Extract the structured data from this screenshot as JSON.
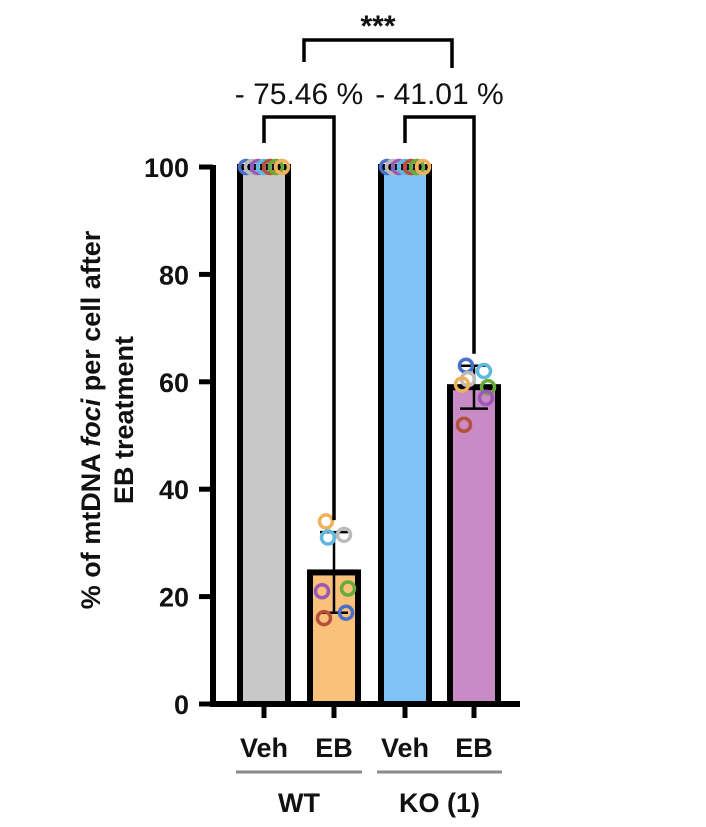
{
  "chart_data": {
    "type": "bar",
    "ylabel_line1_pre": "% of mtDNA ",
    "ylabel_line1_italic": "foci",
    "ylabel_line1_post": " per cell after",
    "ylabel_line2": "EB treatment",
    "ylim": [
      0,
      100
    ],
    "yticks": [
      "0",
      "20",
      "40",
      "60",
      "80",
      "100"
    ],
    "ytick_values": [
      0,
      20,
      40,
      60,
      80,
      100
    ],
    "categories": [
      "Veh",
      "EB",
      "Veh",
      "EB"
    ],
    "groups": [
      {
        "label": "WT",
        "members": [
          0,
          1
        ]
      },
      {
        "label": "KO (1)",
        "members": [
          2,
          3
        ]
      }
    ],
    "bars": [
      {
        "category": "Veh",
        "group": "WT",
        "value": 100,
        "color": "#c8c8c8",
        "error": 0,
        "points": [
          {
            "y": 100,
            "color": "#4a6fc7"
          },
          {
            "y": 100,
            "color": "#bbbbbb"
          },
          {
            "y": 100,
            "color": "#9b59b6"
          },
          {
            "y": 100,
            "color": "#5fb8e0"
          },
          {
            "y": 100,
            "color": "#b5503a"
          },
          {
            "y": 100,
            "color": "#6aaa3a"
          },
          {
            "y": 100,
            "color": "#f0b15a"
          }
        ]
      },
      {
        "category": "EB",
        "group": "WT",
        "value": 24.5,
        "color": "#f9c17a",
        "error": 7.5,
        "points": [
          {
            "y": 34,
            "color": "#f0b15a"
          },
          {
            "y": 31.5,
            "color": "#bbbbbb"
          },
          {
            "y": 31,
            "color": "#5fb8e0"
          },
          {
            "y": 21.5,
            "color": "#6aaa3a"
          },
          {
            "y": 21,
            "color": "#9b59b6"
          },
          {
            "y": 17,
            "color": "#4a6fc7"
          },
          {
            "y": 16,
            "color": "#b5503a"
          }
        ]
      },
      {
        "category": "Veh",
        "group": "KO (1)",
        "value": 100,
        "color": "#7ec2f7",
        "error": 0,
        "points": [
          {
            "y": 100,
            "color": "#4a6fc7"
          },
          {
            "y": 100,
            "color": "#bbbbbb"
          },
          {
            "y": 100,
            "color": "#9b59b6"
          },
          {
            "y": 100,
            "color": "#5fb8e0"
          },
          {
            "y": 100,
            "color": "#b5503a"
          },
          {
            "y": 100,
            "color": "#6aaa3a"
          },
          {
            "y": 100,
            "color": "#f0b15a"
          }
        ]
      },
      {
        "category": "EB",
        "group": "KO (1)",
        "value": 59,
        "color": "#c98bc6",
        "error": 4,
        "points": [
          {
            "y": 63,
            "color": "#4a6fc7"
          },
          {
            "y": 62,
            "color": "#5fb8e0"
          },
          {
            "y": 60.5,
            "color": "#bbbbbb"
          },
          {
            "y": 59,
            "color": "#6aaa3a"
          },
          {
            "y": 59.5,
            "color": "#f0b15a"
          },
          {
            "y": 57,
            "color": "#9b59b6"
          },
          {
            "y": 52,
            "color": "#b5503a"
          }
        ]
      }
    ],
    "annotations": [
      {
        "text": "- 75.46 %",
        "from": 0,
        "to": 1
      },
      {
        "text": "- 41.01 %",
        "from": 2,
        "to": 3
      }
    ],
    "significance": {
      "text": "***"
    },
    "grid": false,
    "legend": "none"
  }
}
